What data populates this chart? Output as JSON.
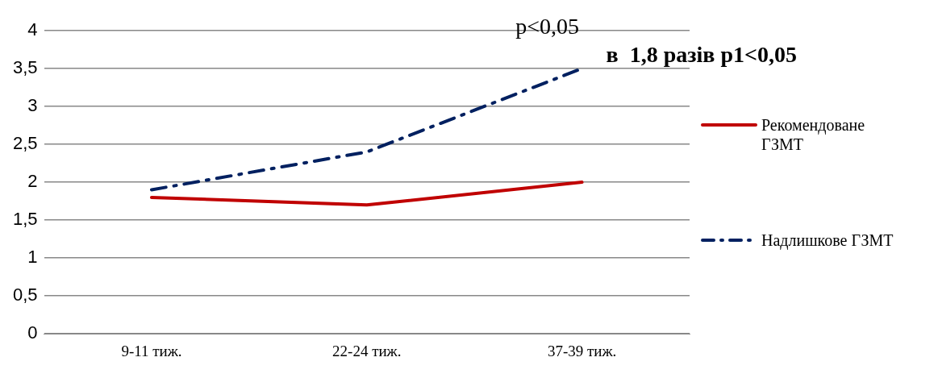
{
  "chart_data": {
    "type": "line",
    "categories": [
      "9-11 тиж.",
      "22-24 тиж.",
      "37-39 тиж."
    ],
    "series": [
      {
        "name": "Рекомендоване ГЗМТ",
        "color": "#c00000",
        "values": [
          1.8,
          1.7,
          2.0
        ],
        "line_style": "solid"
      },
      {
        "name": "Надлишкове ГЗМТ",
        "color": "#002060",
        "values": [
          1.9,
          2.4,
          3.5
        ],
        "line_style": "dashed"
      }
    ],
    "ylim": [
      0,
      4
    ],
    "yticks": [
      {
        "value": 0,
        "label": "0"
      },
      {
        "value": 0.5,
        "label": "0,5"
      },
      {
        "value": 1,
        "label": "1"
      },
      {
        "value": 1.5,
        "label": "1,5"
      },
      {
        "value": 2,
        "label": "2"
      },
      {
        "value": 2.5,
        "label": "2,5"
      },
      {
        "value": 3,
        "label": "3"
      },
      {
        "value": 3.5,
        "label": "3,5"
      },
      {
        "value": 4,
        "label": "4"
      }
    ],
    "grid": "y",
    "legend": "right",
    "annotations": [
      "p<0,05",
      "в  1,8 разів р1<0,05"
    ]
  }
}
